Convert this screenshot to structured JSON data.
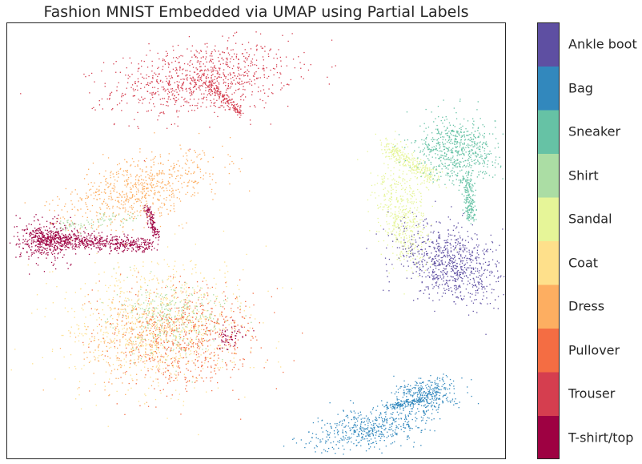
{
  "chart_data": {
    "type": "scatter",
    "title": "Fashion MNIST Embedded via UMAP using Partial Labels",
    "xlabel": "",
    "ylabel": "",
    "grid": false,
    "axis_ticks": false,
    "colorbar": {
      "position": "right",
      "labels": [
        "T-shirt/top",
        "Trouser",
        "Pullover",
        "Dress",
        "Coat",
        "Sandal",
        "Shirt",
        "Sneaker",
        "Bag",
        "Ankle boot"
      ],
      "colors": [
        "#9e0142",
        "#d53e4f",
        "#f46d43",
        "#fdae61",
        "#fee08b",
        "#e6f598",
        "#abdda4",
        "#66c2a5",
        "#3288bd",
        "#5e4fa2"
      ]
    },
    "xlim": [
      0,
      100
    ],
    "ylim": [
      0,
      100
    ],
    "clusters": [
      {
        "class": "Trouser",
        "shape": "blob",
        "center": [
          39,
          87
        ],
        "spread": [
          9,
          4
        ],
        "angle": 8,
        "n": 900
      },
      {
        "class": "Trouser",
        "shape": "line",
        "from": [
          40,
          87
        ],
        "to": [
          47,
          79
        ],
        "width": 1.4,
        "n": 150
      },
      {
        "class": "Dress",
        "shape": "blob",
        "center": [
          27,
          62
        ],
        "spread": [
          8,
          3.5
        ],
        "angle": 20,
        "n": 700
      },
      {
        "class": "T-shirt/top",
        "shape": "line",
        "from": [
          5,
          51
        ],
        "to": [
          29,
          49
        ],
        "width": 2.2,
        "n": 600
      },
      {
        "class": "T-shirt/top",
        "shape": "blob",
        "center": [
          8,
          50
        ],
        "spread": [
          3,
          2.5
        ],
        "angle": 0,
        "n": 400
      },
      {
        "class": "T-shirt/top",
        "shape": "line",
        "from": [
          28,
          58
        ],
        "to": [
          30,
          51
        ],
        "width": 1,
        "n": 120
      },
      {
        "class": "Shirt",
        "shape": "line",
        "from": [
          10,
          53
        ],
        "to": [
          26,
          56
        ],
        "width": 2,
        "n": 80
      },
      {
        "class": "Coat",
        "shape": "blob",
        "center": [
          30,
          31
        ],
        "spread": [
          9,
          7
        ],
        "angle": 0,
        "n": 900
      },
      {
        "class": "Pullover",
        "shape": "blob",
        "center": [
          36,
          28
        ],
        "spread": [
          7,
          6
        ],
        "angle": 0,
        "n": 650
      },
      {
        "class": "Shirt",
        "shape": "blob",
        "center": [
          33,
          33
        ],
        "spread": [
          6,
          4
        ],
        "angle": -20,
        "n": 300
      },
      {
        "class": "Dress",
        "shape": "blob",
        "center": [
          25,
          27
        ],
        "spread": [
          5,
          5
        ],
        "angle": 0,
        "n": 250
      },
      {
        "class": "T-shirt/top",
        "shape": "blob",
        "center": [
          45,
          28
        ],
        "spread": [
          1.5,
          1.5
        ],
        "angle": 0,
        "n": 60
      },
      {
        "class": "Sandal",
        "shape": "line",
        "from": [
          76,
          72
        ],
        "to": [
          86,
          64
        ],
        "width": 2.5,
        "n": 300
      },
      {
        "class": "Sandal",
        "shape": "blob",
        "center": [
          79,
          56
        ],
        "spread": [
          2.5,
          6
        ],
        "angle": 10,
        "n": 500
      },
      {
        "class": "Sneaker",
        "shape": "blob",
        "center": [
          90,
          71
        ],
        "spread": [
          4,
          3.5
        ],
        "angle": 0,
        "n": 650
      },
      {
        "class": "Sneaker",
        "shape": "line",
        "from": [
          92,
          65
        ],
        "to": [
          93,
          55
        ],
        "width": 1.5,
        "n": 200
      },
      {
        "class": "Ankle boot",
        "shape": "blob",
        "center": [
          89,
          45
        ],
        "spread": [
          5.5,
          4
        ],
        "angle": -35,
        "n": 800
      },
      {
        "class": "Bag",
        "shape": "blob",
        "center": [
          72,
          7
        ],
        "spread": [
          6,
          2.3
        ],
        "angle": 12,
        "n": 500
      },
      {
        "class": "Bag",
        "shape": "blob",
        "center": [
          84,
          15
        ],
        "spread": [
          3,
          2
        ],
        "angle": 10,
        "n": 350
      },
      {
        "class": "Bag",
        "shape": "line",
        "from": [
          76,
          12
        ],
        "to": [
          84,
          14
        ],
        "width": 1,
        "n": 120
      }
    ]
  }
}
